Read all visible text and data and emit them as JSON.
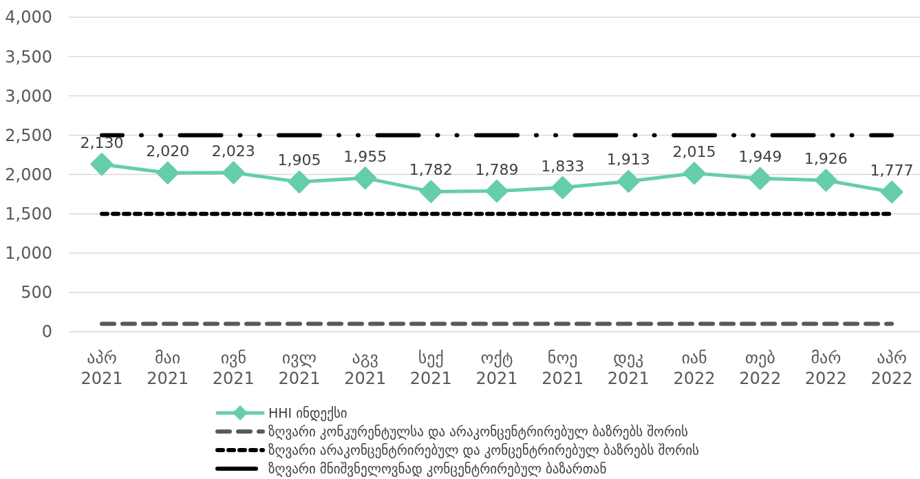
{
  "chart_data": {
    "type": "line",
    "categories": [
      "აპრ 2021",
      "მაი 2021",
      "ივნ 2021",
      "ივლ 2021",
      "აგვ 2021",
      "სექ 2021",
      "ოქტ 2021",
      "ნოე 2021",
      "დეკ 2021",
      "იან 2022",
      "თებ 2022",
      "მარ 2022",
      "აპრ 2022"
    ],
    "ylim": [
      0,
      4000
    ],
    "yticks": [
      {
        "value": 0,
        "label": "0"
      },
      {
        "value": 500,
        "label": "500"
      },
      {
        "value": 1000,
        "label": "1,000"
      },
      {
        "value": 1500,
        "label": "1,500"
      },
      {
        "value": 2000,
        "label": "2,000"
      },
      {
        "value": 2500,
        "label": "2,500"
      },
      {
        "value": 3000,
        "label": "3,000"
      },
      {
        "value": 3500,
        "label": "3,500"
      },
      {
        "value": 4000,
        "label": "4,000"
      }
    ],
    "grid": "y",
    "legend": "bottom",
    "series": [
      {
        "name": "HHI ინდექსი",
        "color": "#66cdaa",
        "marker": "diamond",
        "line_style": "solid",
        "data_labels": true,
        "value_labels": [
          "2,130",
          "2,020",
          "2,023",
          "1,905",
          "1,955",
          "1,782",
          "1,789",
          "1,833",
          "1,913",
          "2,015",
          "1,949",
          "1,926",
          "1,777"
        ],
        "values": [
          2130,
          2020,
          2023,
          1905,
          1955,
          1782,
          1789,
          1833,
          1913,
          2015,
          1949,
          1926,
          1777
        ]
      },
      {
        "name": "ზღვარი კონკურენტულსა და არაკონცენტრირებულ ბაზრებს შორის",
        "color": "#595959",
        "marker": "none",
        "line_style": "dashed",
        "values": [
          100,
          100,
          100,
          100,
          100,
          100,
          100,
          100,
          100,
          100,
          100,
          100,
          100
        ]
      },
      {
        "name": "ზღვარი არაკონცენტრირებულ და კონცენტრირებულ ბაზრებს შორის",
        "color": "#000000",
        "marker": "none",
        "line_style": "dotted",
        "values": [
          1500,
          1500,
          1500,
          1500,
          1500,
          1500,
          1500,
          1500,
          1500,
          1500,
          1500,
          1500,
          1500
        ]
      },
      {
        "name": "ზღვარი მნიშვნელოვნად კონცენტრირებულ ბაზართან",
        "color": "#000000",
        "marker": "none",
        "line_style": "dashdotdot",
        "values": [
          2500,
          2500,
          2500,
          2500,
          2500,
          2500,
          2500,
          2500,
          2500,
          2500,
          2500,
          2500,
          2500
        ]
      }
    ]
  }
}
